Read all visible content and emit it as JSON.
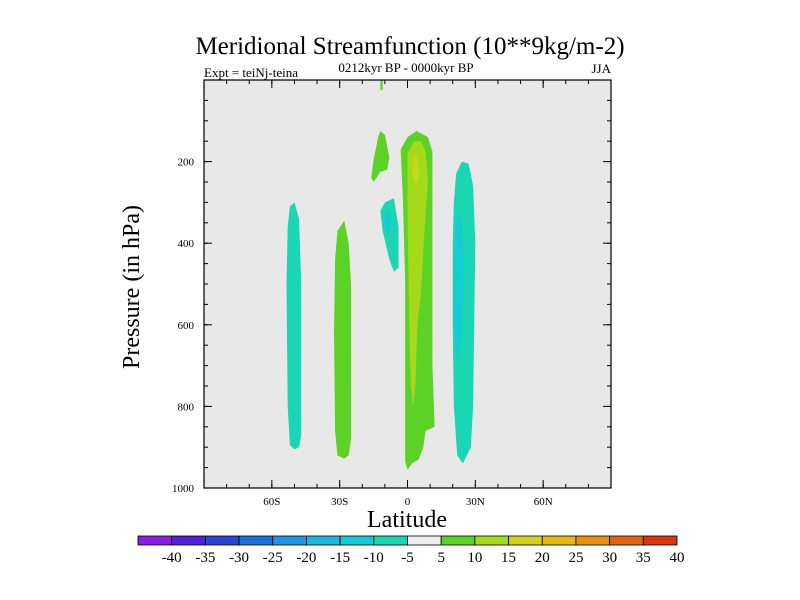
{
  "chart_data": {
    "type": "contour",
    "title": "Meridional Streamfunction (10**9kg/m-2)",
    "experiment_label": "Expt = teiNj-teina",
    "period_label": "0212kyr BP - 0000kyr BP",
    "season_label": "JJA",
    "xlabel": "Latitude",
    "ylabel": "Pressure (in hPa)",
    "xlim": [
      -90,
      90
    ],
    "ylim": [
      0,
      1000
    ],
    "y_inverted": true,
    "x_ticks": [
      {
        "value": -60,
        "label": "60S"
      },
      {
        "value": -30,
        "label": "30S"
      },
      {
        "value": 0,
        "label": "0"
      },
      {
        "value": 30,
        "label": "30N"
      },
      {
        "value": 60,
        "label": "60N"
      }
    ],
    "y_ticks": [
      {
        "value": 200,
        "label": "200"
      },
      {
        "value": 400,
        "label": "400"
      },
      {
        "value": 600,
        "label": "600"
      },
      {
        "value": 800,
        "label": "800"
      },
      {
        "value": 1000,
        "label": "1000"
      }
    ],
    "background_color": "#e8e8e8",
    "colorbar": {
      "colors": [
        "#8a1ee0",
        "#5020d8",
        "#2c42d6",
        "#1c6fe0",
        "#1e95e6",
        "#1ab8e0",
        "#16ccd4",
        "#1ad6b4",
        "#ededed",
        "#5cd226",
        "#a4da1a",
        "#d2d21e",
        "#e6b814",
        "#e89014",
        "#e26412",
        "#dc3410"
      ],
      "labels": [
        "-40",
        "-35",
        "-30",
        "-25",
        "-20",
        "-15",
        "-10",
        "-5",
        "5",
        "10",
        "15",
        "20",
        "25",
        "30",
        "35",
        "40"
      ]
    },
    "regions": [
      {
        "name": "sh-cell-negative",
        "level": "-10 to -5",
        "color": "#1ad6b4",
        "outline": [
          [
            -50,
            300
          ],
          [
            -48,
            340
          ],
          [
            -47,
            500
          ],
          [
            -47,
            700
          ],
          [
            -47,
            870
          ],
          [
            -48,
            900
          ],
          [
            -50,
            905
          ],
          [
            -52,
            895
          ],
          [
            -53,
            800
          ],
          [
            -53.5,
            500
          ],
          [
            -53,
            360
          ],
          [
            -52,
            310
          ]
        ]
      },
      {
        "name": "sh-cell-positive",
        "level": "5 to 10",
        "color": "#5cd226",
        "outline": [
          [
            -28,
            345
          ],
          [
            -26,
            400
          ],
          [
            -25,
            500
          ],
          [
            -25,
            700
          ],
          [
            -25,
            880
          ],
          [
            -26,
            920
          ],
          [
            -28,
            928
          ],
          [
            -31,
            920
          ],
          [
            -32,
            860
          ],
          [
            -32.5,
            620
          ],
          [
            -32,
            440
          ],
          [
            -31,
            370
          ]
        ]
      },
      {
        "name": "upper-jet-positive",
        "level": "5 to 10",
        "color": "#5cd226",
        "outline": [
          [
            -12,
            -10
          ],
          [
            -11,
            -10
          ],
          [
            -11,
            25
          ],
          [
            -12,
            25
          ]
        ]
      },
      {
        "name": "upper-shear-positive",
        "level": "5 to 10",
        "color": "#5cd226",
        "outline": [
          [
            -12,
            125
          ],
          [
            -10,
            135
          ],
          [
            -8,
            190
          ],
          [
            -9,
            220
          ],
          [
            -12,
            225
          ],
          [
            -15,
            250
          ],
          [
            -16,
            240
          ],
          [
            -15,
            195
          ],
          [
            -13,
            140
          ]
        ]
      },
      {
        "name": "tropical-negative",
        "level": "-10 to -5",
        "color": "#1ad6b4",
        "outline": [
          [
            -6,
            290
          ],
          [
            -4,
            360
          ],
          [
            -4,
            460
          ],
          [
            -6,
            470
          ],
          [
            -8,
            440
          ],
          [
            -11,
            370
          ],
          [
            -12,
            320
          ],
          [
            -10,
            300
          ]
        ]
      },
      {
        "name": "tropical-negative-core",
        "level": "-15 to -10",
        "color": "#16ccd4",
        "outline": [
          [
            -8,
            320
          ],
          [
            -7,
            350
          ],
          [
            -8,
            380
          ],
          [
            -10,
            360
          ],
          [
            -10,
            330
          ]
        ]
      },
      {
        "name": "hadley-positive",
        "level": "5 to 10",
        "color": "#5cd226",
        "outline": [
          [
            -3,
            170
          ],
          [
            0,
            140
          ],
          [
            4,
            125
          ],
          [
            9,
            140
          ],
          [
            11,
            175
          ],
          [
            11,
            240
          ],
          [
            11,
            400
          ],
          [
            11,
            600
          ],
          [
            11,
            700
          ],
          [
            12,
            850
          ],
          [
            8,
            860
          ],
          [
            7,
            900
          ],
          [
            5,
            930
          ],
          [
            2,
            940
          ],
          [
            0,
            955
          ],
          [
            -1,
            935
          ],
          [
            -1,
            800
          ],
          [
            -1,
            500
          ],
          [
            -2,
            300
          ]
        ]
      },
      {
        "name": "hadley-positive-core",
        "level": "10 to 15",
        "color": "#a4da1a",
        "outline": [
          [
            0,
            180
          ],
          [
            3,
            150
          ],
          [
            6,
            150
          ],
          [
            8,
            175
          ],
          [
            9,
            250
          ],
          [
            8,
            330
          ],
          [
            7,
            420
          ],
          [
            6,
            520
          ],
          [
            4.5,
            590
          ],
          [
            4,
            660
          ],
          [
            3.5,
            750
          ],
          [
            2.5,
            800
          ],
          [
            1.5,
            750
          ],
          [
            1,
            650
          ],
          [
            0.5,
            500
          ],
          [
            0,
            320
          ]
        ]
      },
      {
        "name": "hadley-positive-peak",
        "level": "15 to 20",
        "color": "#c4d81c",
        "outline": [
          [
            2.5,
            190
          ],
          [
            4,
            185
          ],
          [
            5,
            210
          ],
          [
            4.5,
            250
          ],
          [
            3,
            250
          ],
          [
            2,
            220
          ]
        ]
      },
      {
        "name": "nh-cell-negative",
        "level": "-10 to -5",
        "color": "#1ad6b4",
        "outline": [
          [
            24,
            200
          ],
          [
            27,
            205
          ],
          [
            29,
            260
          ],
          [
            30,
            400
          ],
          [
            29.5,
            600
          ],
          [
            29,
            800
          ],
          [
            28,
            900
          ],
          [
            24.5,
            940
          ],
          [
            22,
            920
          ],
          [
            20.5,
            800
          ],
          [
            20,
            600
          ],
          [
            20,
            400
          ],
          [
            20.5,
            300
          ],
          [
            21.5,
            230
          ]
        ]
      },
      {
        "name": "nh-cell-negative-core",
        "level": "-15 to -10",
        "color": "#16ccd4",
        "outline": [
          [
            22,
            330
          ],
          [
            24,
            350
          ],
          [
            25,
            450
          ],
          [
            24.5,
            560
          ],
          [
            23.5,
            640
          ],
          [
            22,
            700
          ],
          [
            20.5,
            600
          ],
          [
            20.5,
            440
          ]
        ]
      }
    ]
  }
}
